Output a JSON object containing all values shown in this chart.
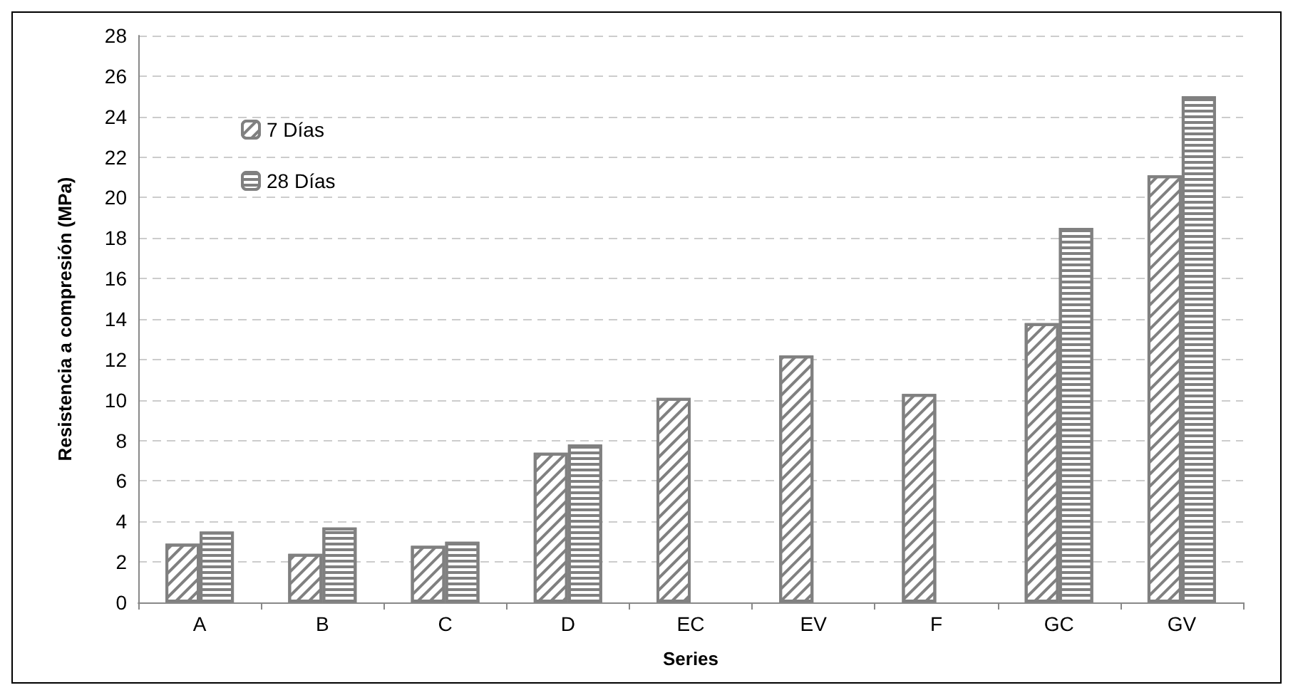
{
  "chart_data": {
    "type": "bar",
    "xlabel": "Series",
    "ylabel": "Resistencia a compresión (MPa)",
    "categories": [
      "A",
      "B",
      "C",
      "D",
      "EC",
      "EV",
      "F",
      "GC",
      "GV"
    ],
    "series": [
      {
        "name": "7 Días",
        "color": "#808080",
        "values": [
          2.9,
          2.4,
          2.8,
          7.4,
          10.1,
          12.2,
          10.3,
          13.8,
          21.1
        ]
      },
      {
        "name": "28 Días",
        "color": "#808080",
        "values": [
          3.5,
          3.7,
          3.0,
          7.8,
          null,
          null,
          null,
          18.5,
          25.0
        ]
      }
    ],
    "ylim": [
      0,
      28
    ],
    "yticks": [
      0,
      2,
      4,
      6,
      8,
      10,
      12,
      14,
      16,
      18,
      20,
      22,
      24,
      26,
      28
    ],
    "grid": "y",
    "legend": "top left"
  }
}
